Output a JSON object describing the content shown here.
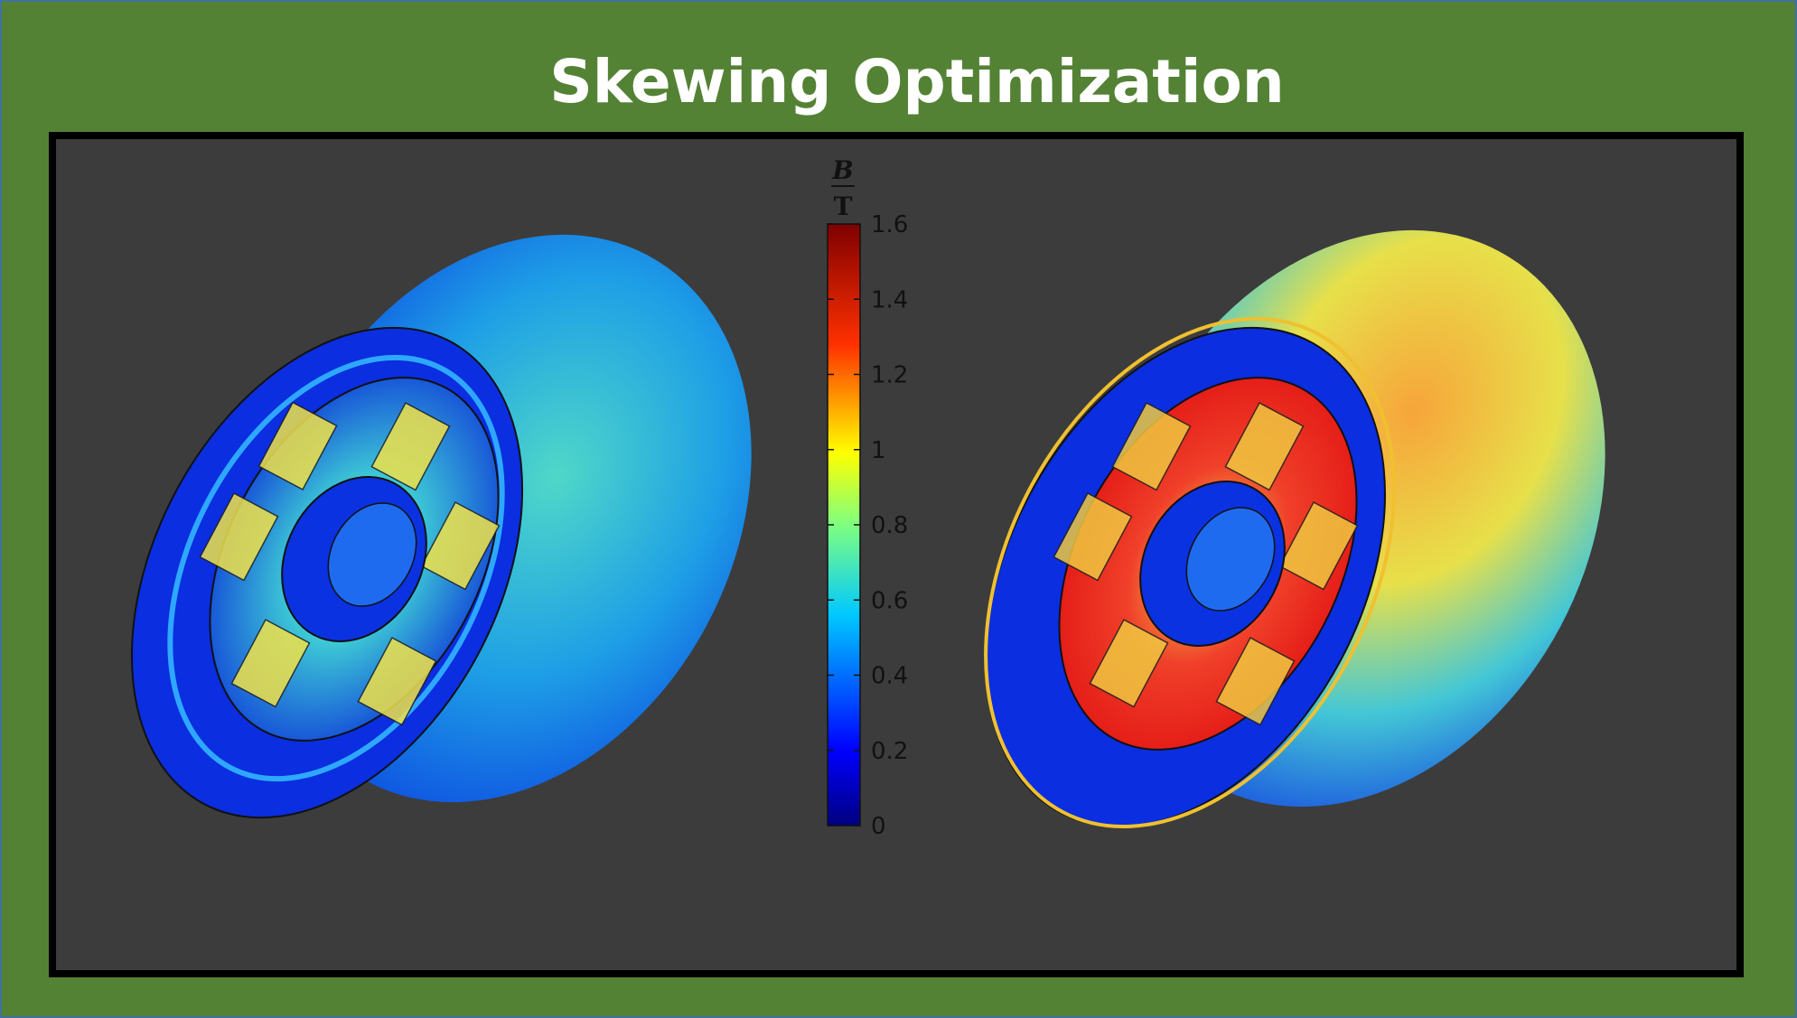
{
  "title": "Skewing Optimization",
  "colorbar": {
    "numerator": "B",
    "denominator": "T",
    "ticks": [
      "1.6",
      "1.4",
      "1.2",
      "1",
      "0.8",
      "0.6",
      "0.4",
      "0.2",
      "0"
    ],
    "min": 0,
    "max": 1.6,
    "colormap": "rainbow (blue-cyan-yellow-red-darkred)"
  },
  "colors": {
    "frame_background": "#548235",
    "panel_background": "#3c3c3c",
    "panel_border": "#000000",
    "title_text": "#ffffff"
  }
}
